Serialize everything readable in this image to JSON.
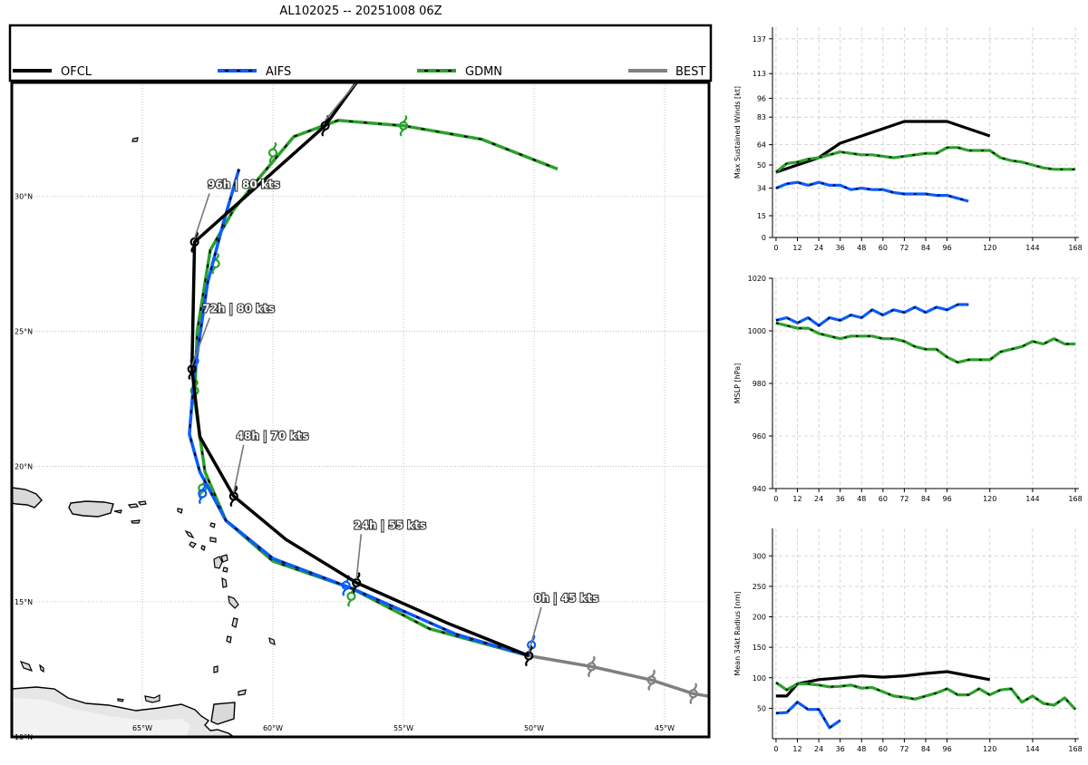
{
  "title": "AL102025 -- 20251008 06Z",
  "colors": {
    "OFCL": "#000000",
    "AIFS": "#0b5cff",
    "GDMN": "#2ca02c",
    "BEST": "#808080",
    "dash": "#000000",
    "land": "#d9d9d9"
  },
  "legend": [
    {
      "name": "OFCL",
      "key": "OFCL",
      "dashed": false
    },
    {
      "name": "AIFS",
      "key": "AIFS",
      "dashed": true
    },
    {
      "name": "GDMN",
      "key": "GDMN",
      "dashed": true
    },
    {
      "name": "BEST",
      "key": "BEST",
      "dashed": false
    }
  ],
  "map": {
    "lon_range": [
      -70,
      -43.3
    ],
    "lat_range": [
      10,
      34.2
    ],
    "lon_ticks": [
      {
        "v": -65,
        "label": "65°W"
      },
      {
        "v": -60,
        "label": "60°W"
      },
      {
        "v": -55,
        "label": "55°W"
      },
      {
        "v": -50,
        "label": "50°W"
      },
      {
        "v": -45,
        "label": "45°W"
      }
    ],
    "lat_ticks": [
      {
        "v": 10,
        "label": "10°N"
      },
      {
        "v": 15,
        "label": "15°N"
      },
      {
        "v": 20,
        "label": "20°N"
      },
      {
        "v": 25,
        "label": "25°N"
      },
      {
        "v": 30,
        "label": "30°N"
      }
    ],
    "tracks": {
      "BEST": [
        [
          -50.2,
          13.0
        ],
        [
          -47.8,
          12.6
        ],
        [
          -45.5,
          12.1
        ],
        [
          -43.9,
          11.6
        ],
        [
          -43.3,
          11.5
        ]
      ],
      "OFCL": [
        [
          -50.2,
          13.0
        ],
        [
          -53.3,
          14.2
        ],
        [
          -56.8,
          15.7
        ],
        [
          -59.5,
          17.3
        ],
        [
          -61.5,
          18.9
        ],
        [
          -62.8,
          21.1
        ],
        [
          -63.1,
          23.6
        ],
        [
          -63.0,
          28.3
        ],
        [
          -58.0,
          32.6
        ],
        [
          -56.8,
          34.2
        ]
      ],
      "AIFS": [
        [
          -50.2,
          13.0
        ],
        [
          -53.0,
          13.8
        ],
        [
          -57.0,
          15.5
        ],
        [
          -60.0,
          16.6
        ],
        [
          -61.8,
          18.0
        ],
        [
          -62.8,
          19.8
        ],
        [
          -63.2,
          21.2
        ],
        [
          -63.0,
          23.5
        ],
        [
          -62.5,
          26.8
        ],
        [
          -61.9,
          29.0
        ],
        [
          -61.3,
          31.0
        ]
      ],
      "GDMN": [
        [
          -50.2,
          13.0
        ],
        [
          -54.0,
          14.0
        ],
        [
          -57.0,
          15.5
        ],
        [
          -60.0,
          16.5
        ],
        [
          -61.8,
          18.0
        ],
        [
          -62.6,
          19.8
        ],
        [
          -63.0,
          22.5
        ],
        [
          -62.9,
          25.0
        ],
        [
          -62.4,
          28.0
        ],
        [
          -61.5,
          29.5
        ],
        [
          -60.5,
          30.7
        ],
        [
          -59.2,
          32.2
        ],
        [
          -57.5,
          32.8
        ],
        [
          -55.0,
          32.6
        ],
        [
          -52.0,
          32.1
        ],
        [
          -49.1,
          31.0
        ]
      ]
    },
    "annotations": [
      {
        "text": "0h | 45 kts",
        "lon": -50.2,
        "lat": 13.0,
        "tlon": -50.0,
        "tlat": 15.0
      },
      {
        "text": "24h | 55 kts",
        "lon": -56.8,
        "lat": 15.7,
        "tlon": -56.9,
        "tlat": 17.7
      },
      {
        "text": "48h | 70 kts",
        "lon": -61.5,
        "lat": 18.9,
        "tlon": -61.4,
        "tlat": 21.0
      },
      {
        "text": "72h | 80 kts",
        "lon": -63.1,
        "lat": 23.6,
        "tlon": -62.7,
        "tlat": 25.7
      },
      {
        "text": "96h | 80 kts",
        "lon": -63.0,
        "lat": 28.3,
        "tlon": -62.5,
        "tlat": 30.3
      }
    ]
  },
  "chart_data": [
    {
      "type": "line",
      "title": "",
      "xlabel": "",
      "ylabel": "Max Sustained Winds [kt]",
      "xlim": [
        -2,
        170
      ],
      "ylim": [
        0,
        145
      ],
      "x_ticks": [
        0,
        12,
        24,
        36,
        48,
        60,
        72,
        84,
        96,
        120,
        144,
        168
      ],
      "y_ticks": [
        0,
        15,
        34,
        50,
        64,
        83,
        96,
        113,
        137
      ],
      "series": [
        {
          "name": "OFCL",
          "x": [
            0,
            12,
            24,
            36,
            48,
            60,
            72,
            84,
            96,
            120
          ],
          "y": [
            45,
            50,
            55,
            65,
            70,
            75,
            80,
            80,
            80,
            70
          ]
        },
        {
          "name": "AIFS",
          "x": [
            0,
            6,
            12,
            18,
            24,
            30,
            36,
            42,
            48,
            54,
            60,
            66,
            72,
            78,
            84,
            90,
            96,
            102,
            108
          ],
          "y": [
            34,
            37,
            38,
            36,
            38,
            36,
            36,
            33,
            34,
            33,
            33,
            31,
            30,
            30,
            30,
            29,
            29,
            27,
            25
          ]
        },
        {
          "name": "GDMN",
          "x": [
            0,
            6,
            12,
            18,
            24,
            30,
            36,
            42,
            48,
            54,
            60,
            66,
            72,
            78,
            84,
            90,
            96,
            102,
            108,
            114,
            120,
            126,
            132,
            138,
            144,
            150,
            156,
            162,
            168
          ],
          "y": [
            45,
            51,
            52,
            54,
            55,
            57,
            59,
            58,
            57,
            57,
            56,
            55,
            56,
            57,
            58,
            58,
            62,
            62,
            60,
            60,
            60,
            55,
            53,
            52,
            50,
            48,
            47,
            47,
            47
          ]
        }
      ]
    },
    {
      "type": "line",
      "title": "",
      "xlabel": "",
      "ylabel": "MSLP [hPa]",
      "xlim": [
        -2,
        170
      ],
      "ylim": [
        940,
        1020
      ],
      "x_ticks": [
        0,
        12,
        24,
        36,
        48,
        60,
        72,
        84,
        96,
        120,
        144,
        168
      ],
      "y_ticks": [
        940,
        960,
        980,
        1000,
        1020
      ],
      "series": [
        {
          "name": "AIFS",
          "x": [
            0,
            6,
            12,
            18,
            24,
            30,
            36,
            42,
            48,
            54,
            60,
            66,
            72,
            78,
            84,
            90,
            96,
            102,
            108
          ],
          "y": [
            1004,
            1005,
            1003,
            1005,
            1002,
            1005,
            1004,
            1006,
            1005,
            1008,
            1006,
            1008,
            1007,
            1009,
            1007,
            1009,
            1008,
            1010,
            1010
          ]
        },
        {
          "name": "GDMN",
          "x": [
            0,
            6,
            12,
            18,
            24,
            30,
            36,
            42,
            48,
            54,
            60,
            66,
            72,
            78,
            84,
            90,
            96,
            102,
            108,
            114,
            120,
            126,
            132,
            138,
            144,
            150,
            156,
            162,
            168
          ],
          "y": [
            1003,
            1002,
            1001,
            1001,
            999,
            998,
            997,
            998,
            998,
            998,
            997,
            997,
            996,
            994,
            993,
            993,
            990,
            988,
            989,
            989,
            989,
            992,
            993,
            994,
            996,
            995,
            997,
            995,
            995
          ]
        }
      ]
    },
    {
      "type": "line",
      "title": "",
      "xlabel": "",
      "ylabel": "Mean 34kt Radius [nm]",
      "xlim": [
        -2,
        170
      ],
      "ylim": [
        0,
        345
      ],
      "x_ticks": [
        0,
        12,
        24,
        36,
        48,
        60,
        72,
        84,
        96,
        120,
        144,
        168
      ],
      "y_ticks": [
        50,
        100,
        150,
        200,
        250,
        300
      ],
      "series": [
        {
          "name": "OFCL",
          "x": [
            0,
            6,
            12,
            24,
            36,
            48,
            60,
            72,
            84,
            96,
            120
          ],
          "y": [
            70,
            70,
            90,
            97,
            100,
            103,
            101,
            103,
            107,
            110,
            97
          ]
        },
        {
          "name": "AIFS",
          "x": [
            0,
            6,
            12,
            18,
            24,
            30,
            36
          ],
          "y": [
            42,
            43,
            60,
            48,
            48,
            18,
            30
          ]
        },
        {
          "name": "GDMN",
          "x": [
            0,
            6,
            12,
            18,
            24,
            30,
            36,
            42,
            48,
            54,
            60,
            66,
            72,
            78,
            84,
            90,
            96,
            102,
            108,
            114,
            120,
            126,
            132,
            138,
            144,
            150,
            156,
            162,
            168
          ],
          "y": [
            92,
            80,
            90,
            90,
            88,
            85,
            86,
            88,
            83,
            84,
            77,
            70,
            68,
            65,
            70,
            75,
            82,
            72,
            72,
            82,
            72,
            80,
            82,
            60,
            70,
            58,
            55,
            67,
            48
          ]
        }
      ]
    }
  ]
}
